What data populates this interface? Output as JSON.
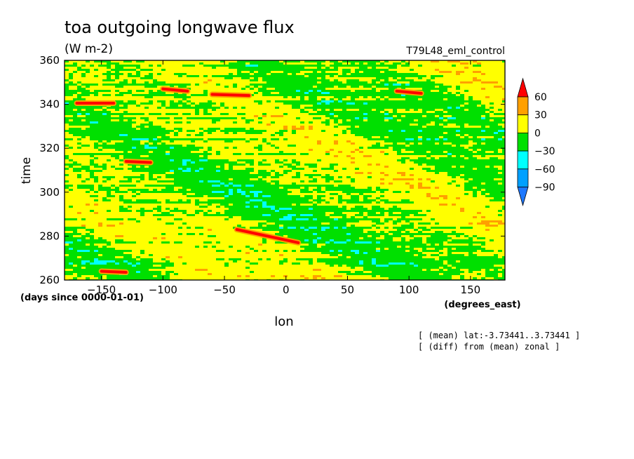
{
  "chart_data": {
    "type": "heatmap",
    "title": "toa outgoing longwave flux",
    "subtitle": "(W m-2)",
    "experiment": "T79L48_eml_control",
    "xlabel": "lon",
    "xunits": "(degrees_east)",
    "ylabel": "time",
    "yunits": "(days since 0000-01-01)",
    "xlim": [
      -180,
      178
    ],
    "ylim": [
      260,
      360
    ],
    "xticks": [
      -150,
      -100,
      -50,
      0,
      50,
      100,
      150
    ],
    "yticks": [
      260,
      280,
      300,
      320,
      340,
      360
    ],
    "notes": [
      "[ (mean) lat:-3.73441..3.73441 ]",
      "[ (diff) from (mean) zonal ]"
    ],
    "colorbar": {
      "levels": [
        -90,
        -60,
        -30,
        0,
        30,
        60
      ],
      "colors": [
        "#1e78ff",
        "#00a0ff",
        "#00ffff",
        "#00e000",
        "#ffff00",
        "#ffa000",
        "#ff0000"
      ],
      "extend": "both"
    },
    "features": [
      {
        "lon_start": -170,
        "time_start": 340.5,
        "lon_end": -140,
        "time_end": 340.5
      },
      {
        "lon_start": -100,
        "time_start": 347,
        "lon_end": -80,
        "time_end": 346
      },
      {
        "lon_start": -60,
        "time_start": 344.5,
        "lon_end": -30,
        "time_end": 344
      },
      {
        "lon_start": -130,
        "time_start": 314,
        "lon_end": -110,
        "time_end": 313.5
      },
      {
        "lon_start": -40,
        "time_start": 283,
        "lon_end": 10,
        "time_end": 277
      },
      {
        "lon_start": -150,
        "time_start": 264,
        "lon_end": -130,
        "time_end": 263.5
      },
      {
        "lon_start": 90,
        "time_start": 346,
        "lon_end": 110,
        "time_end": 345
      }
    ]
  }
}
